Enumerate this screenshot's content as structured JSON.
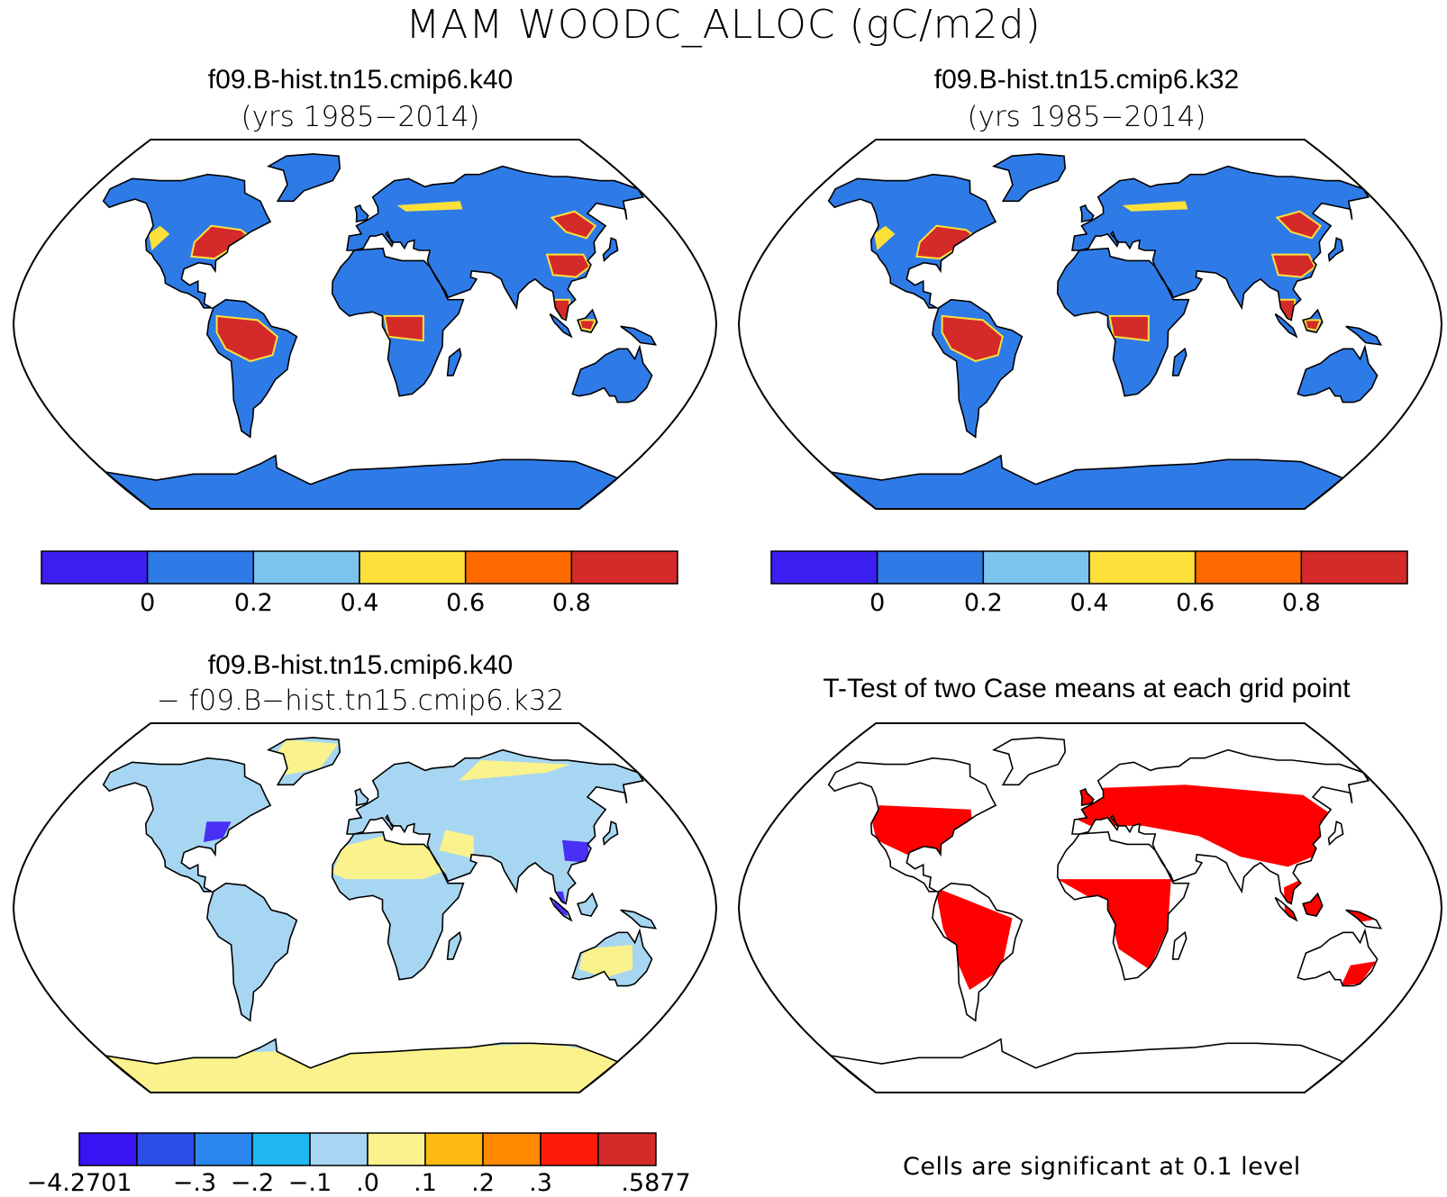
{
  "title": "MAM WOODC_ALLOC (gC/m2d)",
  "panels": {
    "top_left": {
      "title": "f09.B-hist.tn15.cmip6.k40",
      "subtitle": "(yrs 1985−2014)"
    },
    "top_right": {
      "title": "f09.B-hist.tn15.cmip6.k32",
      "subtitle": "(yrs 1985−2014)"
    },
    "bottom_left": {
      "title": "f09.B-hist.tn15.cmip6.k40",
      "subtitle": "− f09.B−hist.tn15.cmip6.k32"
    },
    "bottom_right": {
      "title": "T-Test of two Case means at each grid point",
      "note": "Cells are significant at 0.1 level"
    }
  },
  "colorbar_main": {
    "colors": [
      "#3a1ff0",
      "#2e7be8",
      "#7cc4ee",
      "#fde03a",
      "#ff6a00",
      "#d42a2a"
    ],
    "ticks": [
      "0",
      "0.2",
      "0.4",
      "0.6",
      "0.8"
    ]
  },
  "colorbar_diff": {
    "colors": [
      "#3a13f5",
      "#2a4ee6",
      "#2a86ee",
      "#1fb8f2",
      "#a6d6f2",
      "#faf28c",
      "#fdbb11",
      "#ff8a00",
      "#ff1a0a",
      "#d42a2a"
    ],
    "ticks": [
      "−4.2701",
      "−.3",
      "−.2",
      "−.1",
      ".0",
      ".1",
      ".2",
      ".3",
      ".5877"
    ]
  },
  "map_colors": {
    "land_low": "#2e7be8",
    "land_high": "#d42a2a",
    "land_mid": "#fde03a",
    "diff_land": "#a6d6f2",
    "diff_desert": "#faf28c",
    "diff_neg": "#3a13f5",
    "signif": "#ff0000",
    "ocean": "#ffffff"
  }
}
